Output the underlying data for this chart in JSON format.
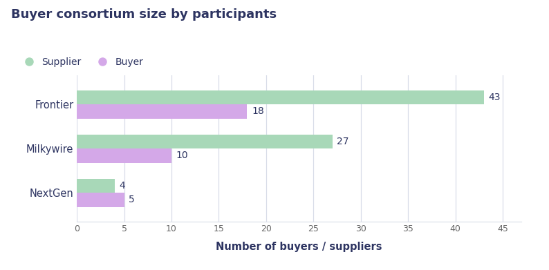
{
  "title": "Buyer consortium size by participants",
  "categories": [
    "NextGen",
    "Milkywire",
    "Frontier"
  ],
  "supplier_values": [
    4,
    27,
    43
  ],
  "buyer_values": [
    5,
    10,
    18
  ],
  "supplier_color": "#a8d8b8",
  "buyer_color": "#d4a8e8",
  "supplier_label": "Supplier",
  "buyer_label": "Buyer",
  "xlabel": "Number of buyers / suppliers",
  "xlim": [
    0,
    47
  ],
  "xticks": [
    0,
    5,
    10,
    15,
    20,
    25,
    30,
    35,
    40,
    45
  ],
  "title_color": "#2d3461",
  "label_color": "#2d3461",
  "tick_color": "#666666",
  "background_color": "#ffffff",
  "grid_color": "#d8dce8",
  "bar_height": 0.32,
  "value_fontsize": 10,
  "title_fontsize": 13,
  "label_fontsize": 10.5
}
